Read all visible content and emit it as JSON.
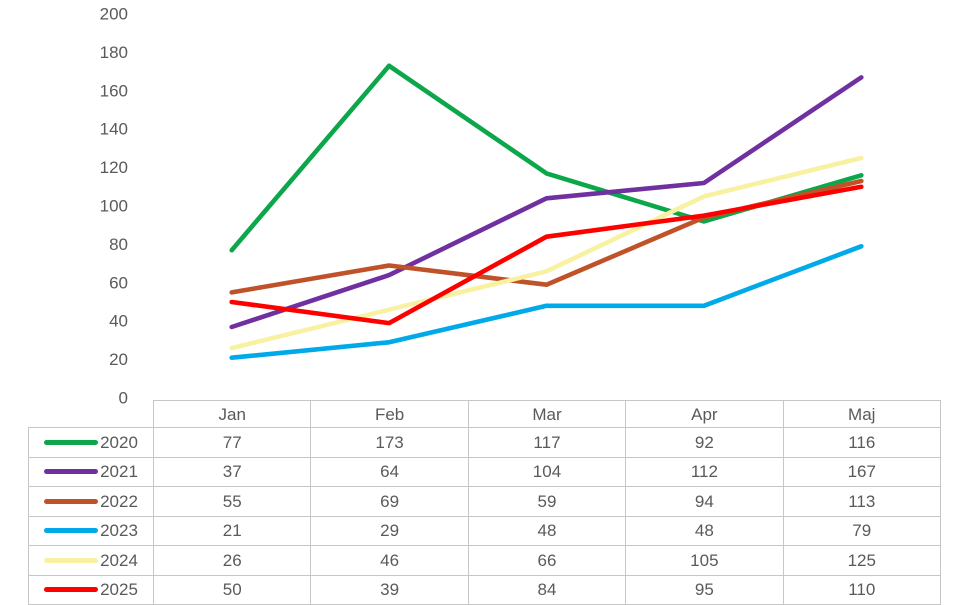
{
  "chart_data": {
    "type": "line",
    "title": "",
    "xlabel": "",
    "ylabel": "",
    "categories": [
      "Jan",
      "Feb",
      "Mar",
      "Apr",
      "Maj"
    ],
    "series": [
      {
        "name": "2020",
        "color": "#0CA64B",
        "values": [
          77,
          173,
          117,
          92,
          116
        ]
      },
      {
        "name": "2021",
        "color": "#7030A0",
        "values": [
          37,
          64,
          104,
          112,
          167
        ]
      },
      {
        "name": "2022",
        "color": "#C05229",
        "values": [
          55,
          69,
          59,
          94,
          113
        ]
      },
      {
        "name": "2023",
        "color": "#00A9E8",
        "values": [
          21,
          29,
          48,
          48,
          79
        ]
      },
      {
        "name": "2024",
        "color": "#F8F1A2",
        "values": [
          26,
          46,
          66,
          105,
          125
        ]
      },
      {
        "name": "2025",
        "color": "#FF0000",
        "values": [
          50,
          39,
          84,
          95,
          110
        ]
      }
    ],
    "ylim": [
      0,
      200
    ],
    "yticks": [
      0,
      20,
      40,
      60,
      80,
      100,
      120,
      140,
      160,
      180,
      200
    ],
    "grid": false,
    "legend_position": "table-left-column",
    "axis_text_color": "#5A5A5A",
    "table_text_color": "#5A5A5A",
    "table_border_color": "#C6C6C6"
  }
}
